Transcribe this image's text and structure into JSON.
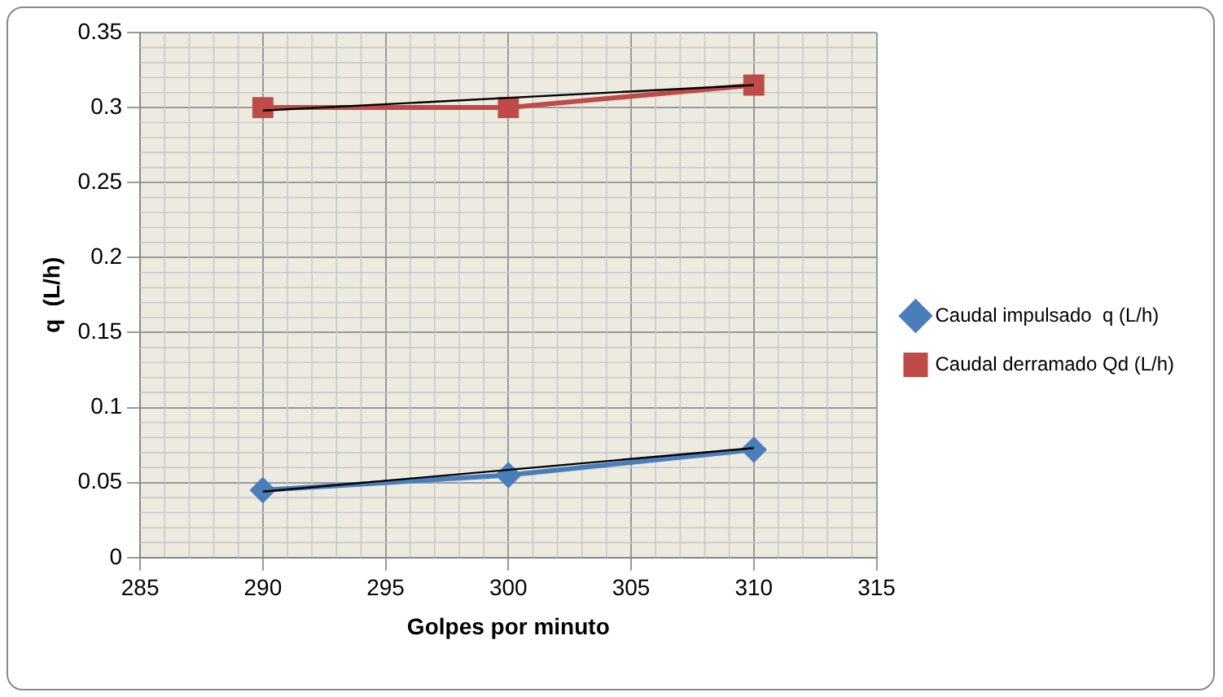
{
  "chart_data": {
    "type": "line",
    "xlabel": "Golpes por minuto",
    "ylabel": "q  (L/h)",
    "x": [
      290,
      300,
      310
    ],
    "series": [
      {
        "name": "Caudal impulsado  q (L/h)",
        "color": "#4a7ebb",
        "values": [
          0.045,
          0.055,
          0.072
        ],
        "marker": "diamond"
      },
      {
        "name": "Caudal derramado Qd (L/h)",
        "color": "#be4b48",
        "values": [
          0.3,
          0.3,
          0.315
        ],
        "marker": "square"
      },
      {
        "type": "line",
        "color": "#000000",
        "values": [
          0.044,
          null,
          0.073
        ],
        "marker": "none"
      },
      {
        "type": "line",
        "color": "#000000",
        "values": [
          0.298,
          null,
          0.315
        ],
        "marker": "none"
      }
    ],
    "xlim": [
      285,
      315
    ],
    "xticks": [
      285,
      290,
      295,
      300,
      305,
      310,
      315
    ],
    "ylim": [
      0,
      0.35
    ],
    "yticks": [
      0,
      0.05,
      0.1,
      0.15,
      0.2,
      0.25,
      0.3,
      0.35
    ],
    "grid": true,
    "legend": "right"
  }
}
